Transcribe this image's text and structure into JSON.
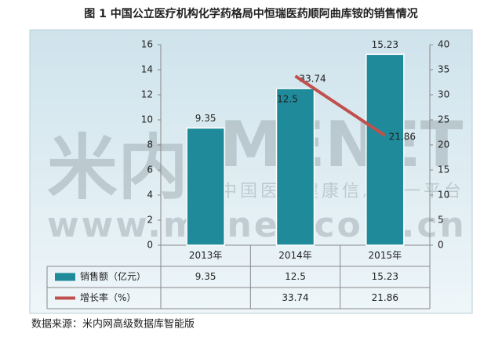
{
  "chart_data": {
    "type": "bar-line",
    "title": "图 1  中国公立医疗机构化学药格局中恒瑞医药顺阿曲库铵的销售情况",
    "categories": [
      "2013年",
      "2014年",
      "2015年"
    ],
    "series": [
      {
        "name": "销售额（亿元）",
        "type": "bar",
        "color": "#1e8a9a",
        "values": [
          9.35,
          12.5,
          15.23
        ]
      },
      {
        "name": "增长率（%）",
        "type": "line",
        "color": "#c0504d",
        "axis": "y2",
        "values": [
          null,
          33.74,
          21.86
        ]
      }
    ],
    "ylim": [
      0,
      16
    ],
    "yticks": [
      0,
      2,
      4,
      6,
      8,
      10,
      12,
      14,
      16
    ],
    "y2lim": [
      0,
      40
    ],
    "y2ticks": [
      0,
      5,
      10,
      15,
      20,
      25,
      30,
      35,
      40
    ],
    "data_table": true,
    "watermark": [
      "米内",
      "MENET",
      "中国医药健康信息第一平台",
      "www.menet.com.cn"
    ],
    "source": "数据来源：米内网高级数据库智能版"
  }
}
